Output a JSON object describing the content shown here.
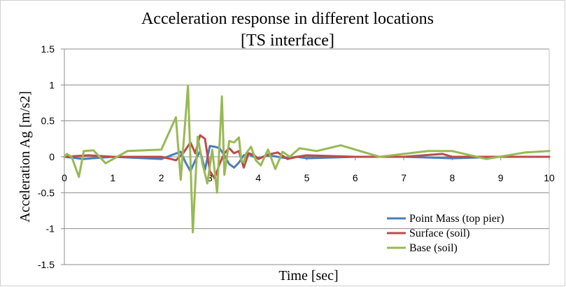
{
  "chart_data": {
    "type": "line",
    "title": [
      "Acceleration response in different locations",
      "[TS interface]"
    ],
    "xlabel": "Time [sec]",
    "ylabel": "Acceleration Ag [m/s2]",
    "xlim": [
      0,
      10
    ],
    "ylim": [
      -1.5,
      1.5
    ],
    "xticks": [
      "0",
      "1",
      "2",
      "3",
      "4",
      "5",
      "6",
      "7",
      "8",
      "9",
      "10"
    ],
    "yticks": [
      "1.5",
      "1",
      "0.5",
      "0",
      "-0.5",
      "-1",
      "-1.5"
    ],
    "grid": "horizontal",
    "legend_position": "bottom-right",
    "series": [
      {
        "name": "Point Mass (top pier)",
        "color": "#4a7ebb",
        "x": [
          0,
          0.4,
          1,
          2,
          2.2,
          2.4,
          2.5,
          2.6,
          2.7,
          2.8,
          2.9,
          3.0,
          3.1,
          3.2,
          3.3,
          3.4,
          3.5,
          3.6,
          3.7,
          3.8,
          3.9,
          4.0,
          4.2,
          4.4,
          4.6,
          4.8,
          5,
          6,
          7,
          8,
          9,
          10
        ],
        "y": [
          0,
          -0.03,
          0,
          -0.03,
          0.02,
          0.07,
          -0.08,
          -0.2,
          -0.05,
          0.08,
          -0.18,
          0.15,
          0.14,
          0.12,
          0.02,
          -0.1,
          -0.15,
          -0.08,
          0.02,
          0.04,
          0.0,
          -0.02,
          0.02,
          0.0,
          -0.02,
          0.0,
          -0.02,
          0.0,
          0.0,
          -0.02,
          0.0,
          0.0
        ]
      },
      {
        "name": "Surface (soil)",
        "color": "#be4b48",
        "x": [
          0,
          0.5,
          1,
          2,
          2.2,
          2.3,
          2.45,
          2.6,
          2.7,
          2.8,
          2.9,
          3.0,
          3.1,
          3.2,
          3.3,
          3.4,
          3.5,
          3.6,
          3.7,
          3.8,
          3.9,
          4.0,
          4.2,
          4.4,
          4.6,
          4.8,
          5,
          6,
          7,
          7.8,
          8,
          9,
          10
        ],
        "y": [
          0,
          0.02,
          0,
          0,
          -0.03,
          -0.05,
          0.05,
          0.2,
          0.05,
          0.3,
          0.25,
          -0.2,
          -0.3,
          -0.1,
          0.05,
          0.12,
          0.05,
          0.08,
          -0.15,
          0.05,
          0.03,
          -0.03,
          0.03,
          0.06,
          -0.03,
          0.0,
          0.02,
          0.0,
          0.0,
          0.04,
          0.0,
          0.0,
          0.0
        ]
      },
      {
        "name": "Base (soil)",
        "color": "#98b954",
        "x": [
          0,
          0.05,
          0.15,
          0.3,
          0.4,
          0.6,
          0.85,
          1.3,
          2.0,
          2.3,
          2.4,
          2.55,
          2.65,
          2.75,
          2.85,
          2.95,
          3.05,
          3.15,
          3.25,
          3.3,
          3.4,
          3.5,
          3.6,
          3.65,
          3.7,
          3.75,
          3.85,
          3.95,
          4.05,
          4.2,
          4.35,
          4.5,
          4.65,
          4.85,
          5.2,
          5.7,
          6.5,
          7.5,
          8.0,
          8.7,
          9.5,
          10
        ],
        "y": [
          0,
          0.04,
          0,
          -0.28,
          0.08,
          0.09,
          -0.09,
          0.08,
          0.1,
          0.55,
          -0.32,
          0.99,
          -1.05,
          0.28,
          -0.1,
          -0.37,
          0.1,
          -0.5,
          0.84,
          -0.25,
          0.22,
          0.2,
          0.27,
          -0.05,
          -0.08,
          0.05,
          0.14,
          -0.05,
          -0.12,
          0.1,
          -0.17,
          0.07,
          0.0,
          0.12,
          0.08,
          0.16,
          0.0,
          0.08,
          0.08,
          -0.03,
          0.06,
          0.08
        ]
      }
    ]
  }
}
